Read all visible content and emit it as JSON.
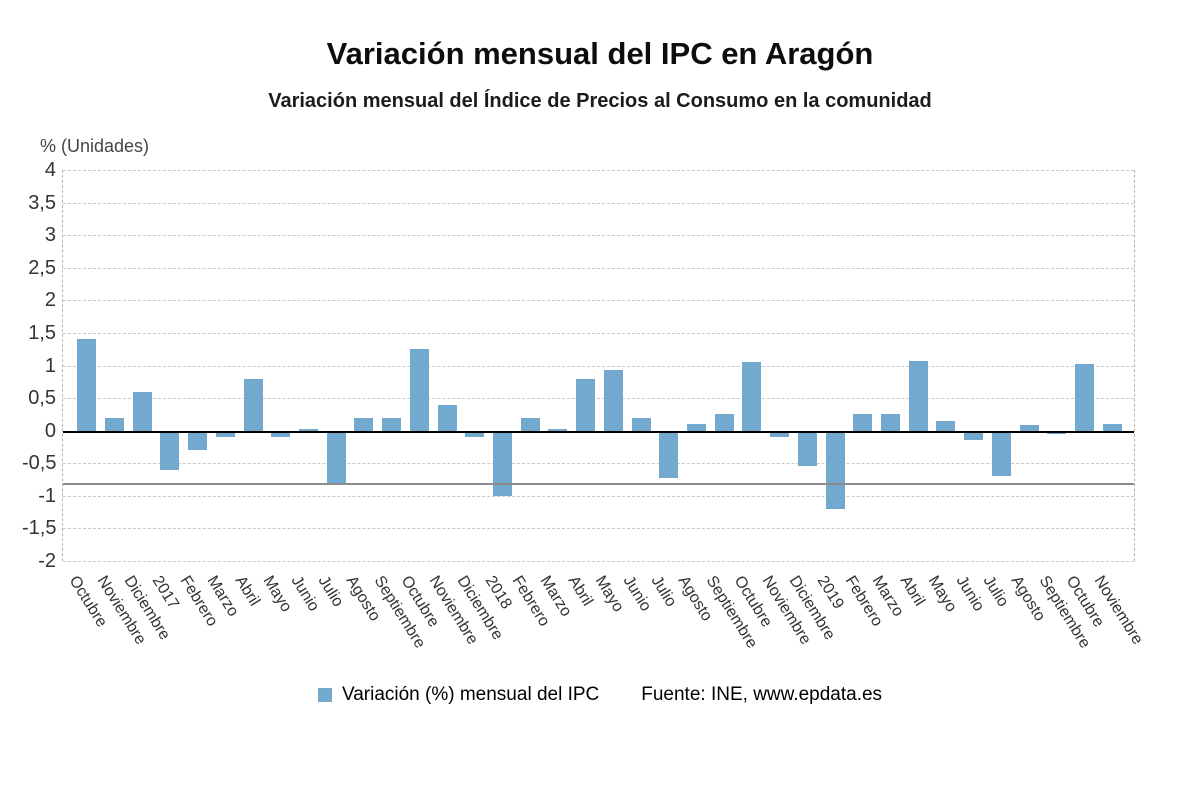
{
  "title": "Variación mensual del IPC en Aragón",
  "subtitle": "Variación mensual del Índice de Precios al Consumo en la comunidad",
  "axis_unit_label": "% (Unidades)",
  "legend": {
    "series_label": "Variación (%) mensual del IPC",
    "source_label": "Fuente: INE, www.epdata.es"
  },
  "colors": {
    "bar": "#74a9cf",
    "grid": "#c8c8c8",
    "zero_line": "#000000",
    "reference_line": "#8c8c8c",
    "text": "#333333"
  },
  "chart_data": {
    "type": "bar",
    "title": "Variación mensual del IPC en Aragón",
    "subtitle": "Variación mensual del Índice de Precios al Consumo en la comunidad",
    "xlabel": "",
    "ylabel": "% (Unidades)",
    "ylim": [
      -2,
      4
    ],
    "grid": true,
    "legend_position": "bottom",
    "reference_line_y": -0.8,
    "yticks": [
      {
        "v": 4,
        "label": "4"
      },
      {
        "v": 3.5,
        "label": "3,5"
      },
      {
        "v": 3,
        "label": "3"
      },
      {
        "v": 2.5,
        "label": "2,5"
      },
      {
        "v": 2,
        "label": "2"
      },
      {
        "v": 1.5,
        "label": "1,5"
      },
      {
        "v": 1,
        "label": "1"
      },
      {
        "v": 0.5,
        "label": "0,5"
      },
      {
        "v": 0,
        "label": "0"
      },
      {
        "v": -0.5,
        "label": "-0,5"
      },
      {
        "v": -1,
        "label": "-1"
      },
      {
        "v": -1.5,
        "label": "-1,5"
      },
      {
        "v": -2,
        "label": "-2"
      }
    ],
    "categories": [
      "Octubre",
      "Noviembre",
      "Diciembre",
      "2017",
      "Febrero",
      "Marzo",
      "Abril",
      "Mayo",
      "Junio",
      "Julio",
      "Agosto",
      "Septiembre",
      "Octubre",
      "Noviembre",
      "Diciembre",
      "2018",
      "Febrero",
      "Marzo",
      "Abril",
      "Mayo",
      "Junio",
      "Julio",
      "Agosto",
      "Septiembre",
      "Octubre",
      "Noviembre",
      "Diciembre",
      "2019",
      "Febrero",
      "Marzo",
      "Abril",
      "Mayo",
      "Junio",
      "Julio",
      "Agosto",
      "Septiembre",
      "Octubre",
      "Noviembre"
    ],
    "values": [
      1.4,
      0.2,
      0.6,
      -0.6,
      -0.3,
      -0.1,
      0.8,
      -0.1,
      0.03,
      -0.8,
      0.2,
      0.2,
      1.25,
      0.4,
      -0.1,
      -1.0,
      0.2,
      0.03,
      0.8,
      0.93,
      0.2,
      -0.72,
      0.1,
      0.25,
      1.05,
      -0.1,
      -0.55,
      -1.2,
      0.25,
      0.25,
      1.07,
      0.15,
      -0.15,
      -0.7,
      0.08,
      -0.05,
      1.02,
      0.1
    ]
  }
}
